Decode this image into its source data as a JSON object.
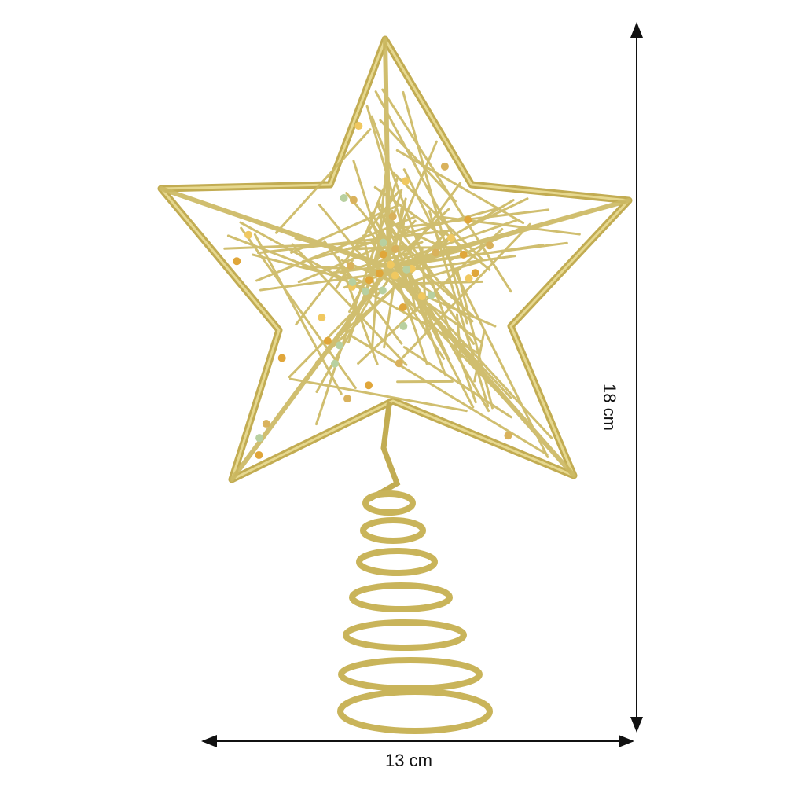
{
  "product": {
    "description_icon": "gold-glitter-wire-star-tree-topper",
    "color": "#c9b45a"
  },
  "dimensions": {
    "height_label": "18 cm",
    "width_label": "13 cm",
    "arrow_color": "#111111"
  }
}
